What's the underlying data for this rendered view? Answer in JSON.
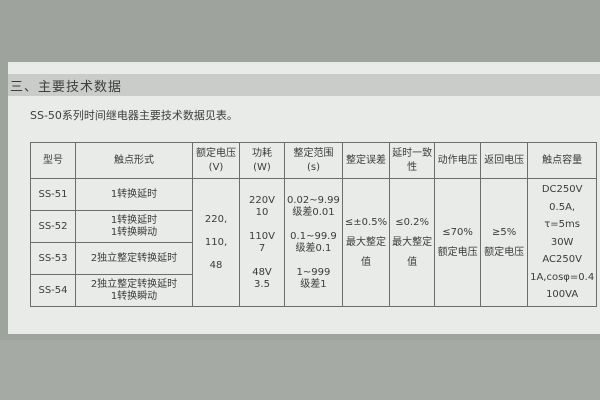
{
  "section_title": "三、主要技术数据",
  "intro": "SS-50系列时间继电器主要技术数据见表。",
  "table": {
    "headers": [
      "型号",
      "触点形式",
      "额定电压\n(V)",
      "功耗\n(W)",
      "整定范围\n(s)",
      "整定误差",
      "延时一致性",
      "动作电压",
      "返回电压",
      "触点容量"
    ],
    "models": [
      "SS-51",
      "SS-52",
      "SS-53",
      "SS-54"
    ],
    "contacts": [
      "1转换延时",
      "1转换延时\n1转换瞬动",
      "2独立整定转换延时",
      "2独立整定转换延时\n1转换瞬动"
    ],
    "rated_voltage": "220,\n110,\n48",
    "power": "220V\n10\n\n110V\n7\n\n48V\n3.5",
    "range": "0.02~9.99\n级差0.01\n\n0.1~99.9\n级差0.1\n\n1~999\n级差1",
    "setting_error": "≤±0.5%\n最大整定\n值",
    "delay_consistency": "≤0.2%\n最大整定\n值",
    "operate_voltage": "≤70%\n额定电压",
    "return_voltage": "≥5%\n额定电压",
    "contact_capacity": "DC250V\n0.5A, τ=5ms\n30W\nAC250V\n1A,cosφ=0.4\n100VA"
  }
}
